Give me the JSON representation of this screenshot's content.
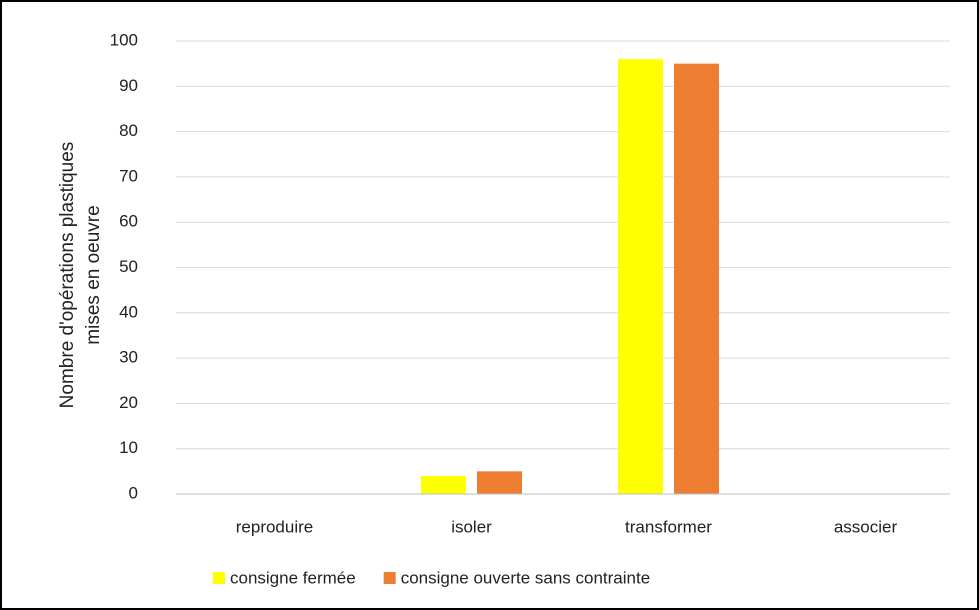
{
  "chart_data": {
    "type": "bar",
    "ylabel": [
      "Nombre d'opérations plastiques",
      "mises en oeuvre"
    ],
    "categories": [
      "reproduire",
      "isoler",
      "transformer",
      "associer"
    ],
    "series": [
      {
        "name": "consigne fermée",
        "color": "#ffff00",
        "values": [
          0,
          4,
          96,
          0
        ]
      },
      {
        "name": "consigne ouverte sans contrainte",
        "color": "#ed7d31",
        "values": [
          0,
          5,
          95,
          0
        ]
      }
    ],
    "ylim": [
      0,
      100
    ],
    "yticks": [
      0,
      10,
      20,
      30,
      40,
      50,
      60,
      70,
      80,
      90,
      100
    ],
    "grid": true,
    "legend": "bottom"
  }
}
